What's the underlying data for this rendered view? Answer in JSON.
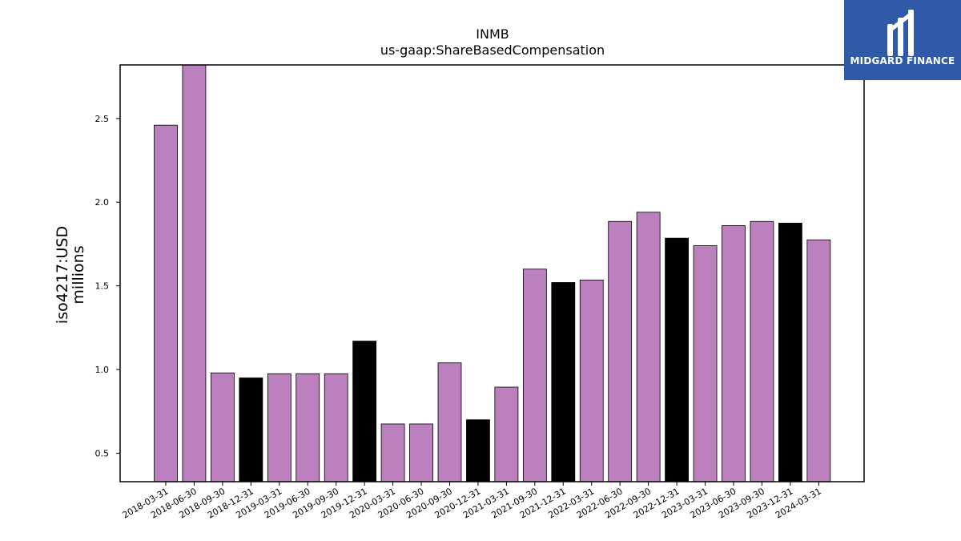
{
  "chart_data": {
    "type": "bar",
    "title": "INMB",
    "subtitle": "us-gaap:ShareBasedCompensation",
    "ylabel": "iso4217:USD",
    "ylabel2": "millions",
    "xlabel": "",
    "ylim": [
      0.33,
      2.82
    ],
    "yticks": [
      0.5,
      1.0,
      1.5,
      2.0,
      2.5
    ],
    "ytick_labels": [
      "0.5",
      "1.0",
      "1.5",
      "2.0",
      "2.5"
    ],
    "categories": [
      "2018-03-31",
      "2018-06-30",
      "2018-09-30",
      "2018-12-31",
      "2019-03-31",
      "2019-06-30",
      "2019-09-30",
      "2019-12-31",
      "2020-03-31",
      "2020-06-30",
      "2020-09-30",
      "2020-12-31",
      "2021-03-31",
      "2021-09-30",
      "2021-12-31",
      "2022-03-31",
      "2022-06-30",
      "2022-09-30",
      "2022-12-31",
      "2023-03-31",
      "2023-06-30",
      "2023-09-30",
      "2023-12-31",
      "2024-03-31"
    ],
    "values": [
      2.46,
      2.82,
      0.98,
      0.95,
      0.975,
      0.975,
      0.975,
      1.17,
      0.675,
      0.675,
      1.04,
      0.7,
      0.895,
      1.6,
      1.52,
      1.535,
      1.885,
      1.94,
      1.785,
      1.74,
      1.86,
      1.885,
      1.875,
      1.775
    ],
    "bar_colors": [
      "#bb80bd",
      "#bb80bd",
      "#bb80bd",
      "#000000",
      "#bb80bd",
      "#bb80bd",
      "#bb80bd",
      "#000000",
      "#bb80bd",
      "#bb80bd",
      "#bb80bd",
      "#000000",
      "#bb80bd",
      "#bb80bd",
      "#000000",
      "#bb80bd",
      "#bb80bd",
      "#bb80bd",
      "#000000",
      "#bb80bd",
      "#bb80bd",
      "#bb80bd",
      "#000000",
      "#bb80bd"
    ],
    "grid": false,
    "legend": "none"
  },
  "logo": {
    "text": "MIDGARD FINANCE",
    "background": "#2f5aa8"
  }
}
